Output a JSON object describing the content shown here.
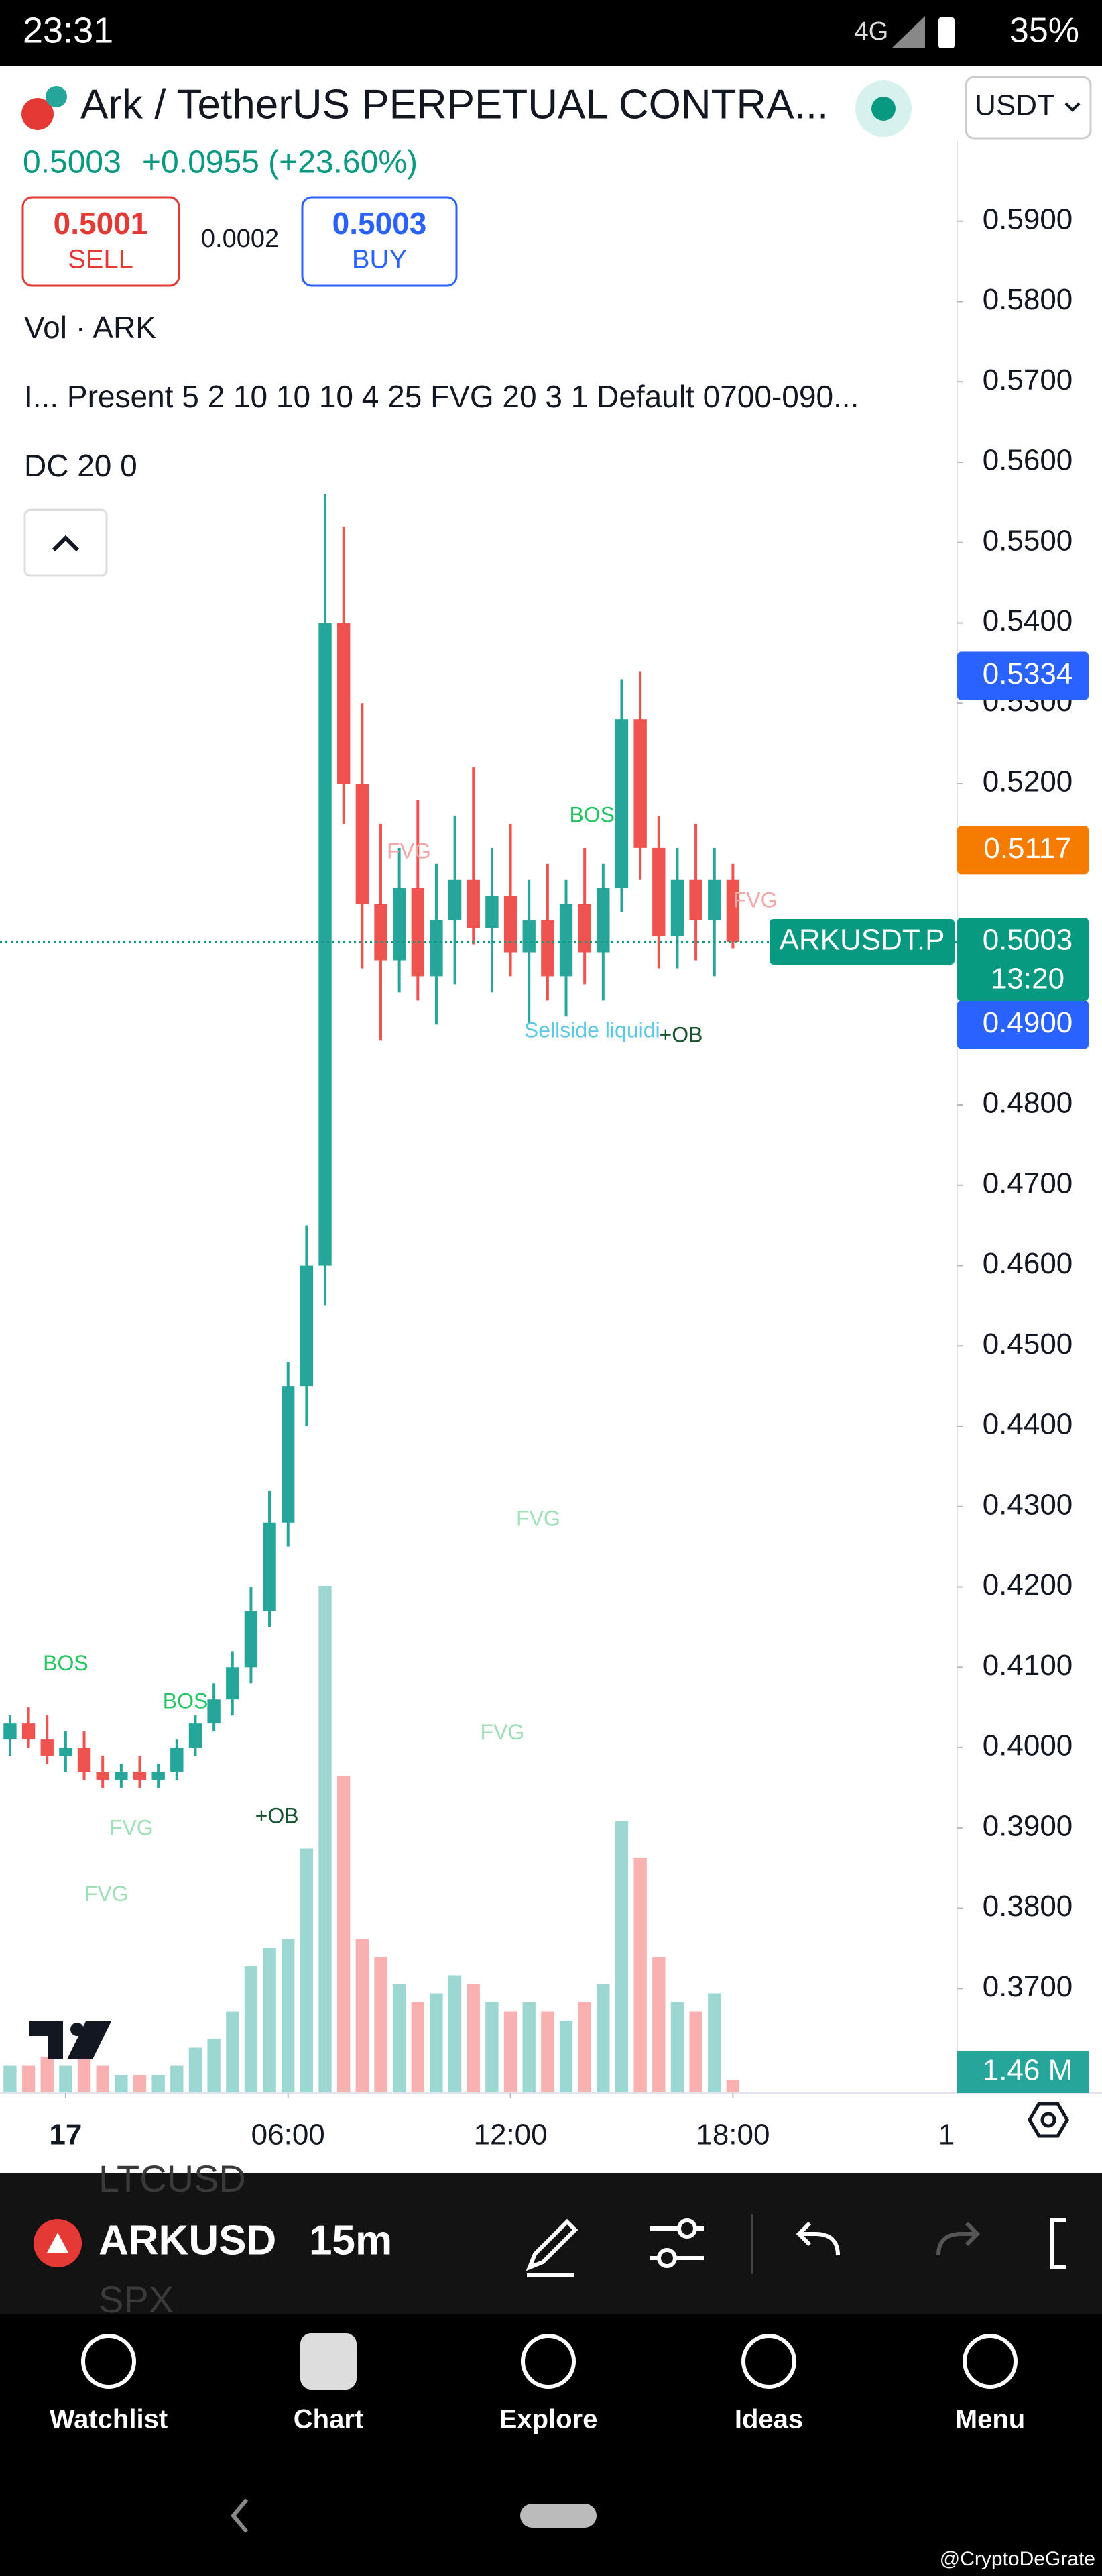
{
  "status_bar": {
    "time": "23:31",
    "network": "4G",
    "battery": "35%"
  },
  "header": {
    "symbol_title": "Ark / TetherUS PERPETUAL CONTRA...",
    "currency": "USDT"
  },
  "quote": {
    "price": "0.5003",
    "change": "+0.0955 (+23.60%)",
    "sell_price": "0.5001",
    "sell_label": "SELL",
    "spread": "0.0002",
    "buy_price": "0.5003",
    "buy_label": "BUY"
  },
  "indicators": [
    "Vol · ARK",
    "I...  Present 5 2 10 10 10 4 25 FVG 20 3 1 Default 0700-090...",
    "DC 20 0"
  ],
  "chart_data": {
    "type": "candlestick",
    "x": [
      -1.5,
      -1,
      -0.5,
      0,
      0.5,
      1,
      1.5,
      2,
      2.5,
      3,
      3.5,
      4,
      4.5,
      5,
      5.5,
      6,
      6.5,
      7,
      7.5,
      8,
      8.5,
      9,
      9.5,
      10,
      10.5,
      11,
      11.5,
      12,
      12.5,
      13,
      13.5,
      14,
      14.5,
      15,
      15.5,
      16,
      16.5,
      17,
      17.5,
      18
    ],
    "open": [
      0.401,
      0.403,
      0.401,
      0.399,
      0.4,
      0.397,
      0.396,
      0.397,
      0.396,
      0.397,
      0.4,
      0.403,
      0.406,
      0.41,
      0.417,
      0.428,
      0.445,
      0.46,
      0.54,
      0.52,
      0.505,
      0.498,
      0.507,
      0.496,
      0.503,
      0.508,
      0.502,
      0.506,
      0.499,
      0.503,
      0.496,
      0.505,
      0.499,
      0.507,
      0.528,
      0.512,
      0.501,
      0.508,
      0.503,
      0.508
    ],
    "high": [
      0.404,
      0.405,
      0.404,
      0.402,
      0.402,
      0.399,
      0.398,
      0.399,
      0.398,
      0.401,
      0.404,
      0.408,
      0.412,
      0.42,
      0.432,
      0.448,
      0.465,
      0.556,
      0.552,
      0.53,
      0.515,
      0.512,
      0.518,
      0.51,
      0.516,
      0.522,
      0.512,
      0.515,
      0.508,
      0.51,
      0.508,
      0.512,
      0.51,
      0.533,
      0.534,
      0.516,
      0.512,
      0.515,
      0.512,
      0.51
    ],
    "low": [
      0.399,
      0.4,
      0.398,
      0.397,
      0.396,
      0.395,
      0.395,
      0.395,
      0.395,
      0.396,
      0.399,
      0.402,
      0.404,
      0.408,
      0.415,
      0.425,
      0.44,
      0.455,
      0.515,
      0.497,
      0.488,
      0.494,
      0.493,
      0.49,
      0.495,
      0.5,
      0.494,
      0.496,
      0.49,
      0.493,
      0.491,
      0.495,
      0.493,
      0.504,
      0.508,
      0.497,
      0.497,
      0.498,
      0.496,
      0.4995
    ],
    "close": [
      0.403,
      0.401,
      0.399,
      0.4,
      0.397,
      0.396,
      0.397,
      0.396,
      0.397,
      0.4,
      0.403,
      0.406,
      0.41,
      0.417,
      0.428,
      0.445,
      0.46,
      0.54,
      0.52,
      0.505,
      0.498,
      0.507,
      0.496,
      0.503,
      0.508,
      0.502,
      0.506,
      0.499,
      0.503,
      0.496,
      0.505,
      0.499,
      0.507,
      0.528,
      0.512,
      0.501,
      0.508,
      0.503,
      0.508,
      0.5003
    ],
    "volume": [
      3,
      3,
      4,
      3,
      4,
      3,
      2,
      2,
      2,
      3,
      5,
      6,
      9,
      14,
      16,
      17,
      27,
      56,
      35,
      17,
      15,
      12,
      10,
      11,
      13,
      12,
      10,
      9,
      10,
      9,
      8,
      10,
      12,
      30,
      26,
      15,
      10,
      9,
      11,
      1.46
    ],
    "up_color": "#26a69a",
    "down_color": "#ef5350",
    "xlim": [
      -1.77,
      24.05
    ],
    "xticks": [
      {
        "value": 0,
        "label": "17"
      },
      {
        "value": 6,
        "label": "06:00"
      },
      {
        "value": 12,
        "label": "12:00"
      },
      {
        "value": 18,
        "label": "18:00"
      }
    ],
    "ylim": [
      0.357,
      0.6
    ],
    "yticks": [
      {
        "value": 0.59,
        "label": "0.5900"
      },
      {
        "value": 0.58,
        "label": "0.5800"
      },
      {
        "value": 0.57,
        "label": "0.5700"
      },
      {
        "value": 0.56,
        "label": "0.5600"
      },
      {
        "value": 0.55,
        "label": "0.5500"
      },
      {
        "value": 0.54,
        "label": "0.5400"
      },
      {
        "value": 0.53,
        "label": "0.5300"
      },
      {
        "value": 0.52,
        "label": "0.5200"
      },
      {
        "value": 0.48,
        "label": "0.4800"
      },
      {
        "value": 0.47,
        "label": "0.4700"
      },
      {
        "value": 0.46,
        "label": "0.4600"
      },
      {
        "value": 0.45,
        "label": "0.4500"
      },
      {
        "value": 0.44,
        "label": "0.4400"
      },
      {
        "value": 0.43,
        "label": "0.4300"
      },
      {
        "value": 0.42,
        "label": "0.4200"
      },
      {
        "value": 0.41,
        "label": "0.4100"
      },
      {
        "value": 0.4,
        "label": "0.4000"
      },
      {
        "value": 0.39,
        "label": "0.3900"
      },
      {
        "value": 0.38,
        "label": "0.3800"
      },
      {
        "value": 0.37,
        "label": "0.3700"
      }
    ],
    "volume_ylim": [
      0,
      60
    ],
    "volume_label": "1.46 M",
    "price_tags": [
      {
        "value": 0.5334,
        "label": "0.5334",
        "color": "#2962ff"
      },
      {
        "value": 0.5117,
        "label": "0.5117",
        "color": "#f57c00"
      },
      {
        "value": 0.49,
        "label": "0.4900",
        "color": "#2962ff"
      }
    ],
    "last_price": {
      "value": 0.5003,
      "label": "0.5003",
      "countdown": "13:20",
      "symbol": "ARKUSDT.P",
      "color": "#089981"
    },
    "annotations": [
      {
        "text": "FVG",
        "x": 9.26,
        "y": 0.5114,
        "color": "#f4a5a5"
      },
      {
        "text": "FVG",
        "x": 18.6,
        "y": 0.5053,
        "color": "#f4a5a5"
      },
      {
        "text": "BOS",
        "x": 14.2,
        "y": 0.5159,
        "color": "#22c55e"
      },
      {
        "text": "+OB",
        "x": 16.6,
        "y": 0.4885,
        "color": "#14532d"
      },
      {
        "text": "Sellside liquidi",
        "x": 14.2,
        "y": 0.4891,
        "color": "#5bc8e8"
      },
      {
        "text": "FVG",
        "x": 12.75,
        "y": 0.4283,
        "color": "#9de0b8"
      },
      {
        "text": "FVG",
        "x": 11.78,
        "y": 0.4017,
        "color": "#9de0b8"
      },
      {
        "text": "FVG",
        "x": 1.77,
        "y": 0.3898,
        "color": "#9de0b8"
      },
      {
        "text": "FVG",
        "x": 1.1,
        "y": 0.3816,
        "color": "#9de0b8"
      },
      {
        "text": "BOS",
        "x": 0,
        "y": 0.4103,
        "color": "#22c55e"
      },
      {
        "text": "BOS",
        "x": 3.23,
        "y": 0.4056,
        "color": "#22c55e"
      },
      {
        "text": "+OB",
        "x": 5.7,
        "y": 0.3913,
        "color": "#14532d"
      }
    ]
  },
  "toolbar": {
    "symbol": "ARKUSD",
    "interval": "15m",
    "list_above": "LTCUSD",
    "list_below": "SPX"
  },
  "nav": [
    "Watchlist",
    "Chart",
    "Explore",
    "Ideas",
    "Menu"
  ],
  "watermark": "@CryptoDeGrate"
}
